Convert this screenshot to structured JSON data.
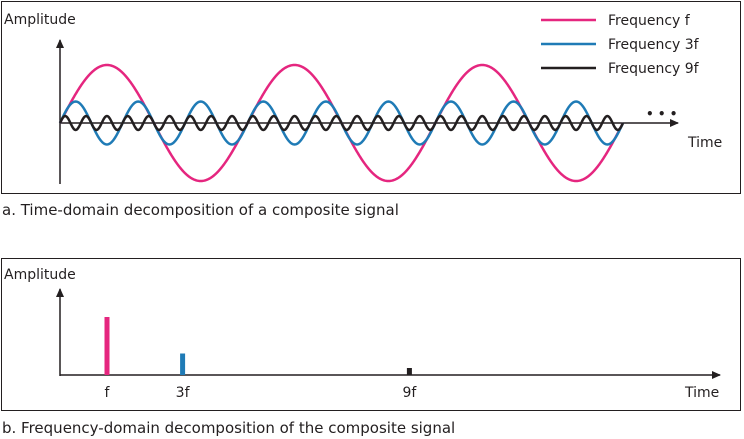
{
  "time_domain": {
    "y_label": "Amplitude",
    "x_label": "Time",
    "ellipsis": "• • •",
    "caption": "a. Time-domain decomposition of a composite signal",
    "legend": [
      {
        "label": "Frequency f",
        "color": "#e5267f"
      },
      {
        "label": "Frequency 3f",
        "color": "#1f7bb6"
      },
      {
        "label": "Frequency 9f",
        "color": "#231f20"
      }
    ],
    "waves": [
      {
        "name": "frequency-f",
        "color": "#e5267f",
        "cycles": 3,
        "amplitude": 1.0
      },
      {
        "name": "frequency-3f",
        "color": "#1f7bb6",
        "cycles": 9,
        "amplitude": 0.37
      },
      {
        "name": "frequency-9f",
        "color": "#231f20",
        "cycles": 27,
        "amplitude": 0.12
      }
    ]
  },
  "frequency_domain": {
    "y_label": "Amplitude",
    "x_label": "Time",
    "caption": "b. Frequency-domain decomposition of the composite signal",
    "bars": [
      {
        "label": "f",
        "harmonic": 1,
        "amplitude": 1.0,
        "color": "#e5267f"
      },
      {
        "label": "3f",
        "harmonic": 3,
        "amplitude": 0.37,
        "color": "#1f7bb6"
      },
      {
        "label": "9f",
        "harmonic": 9,
        "amplitude": 0.12,
        "color": "#231f20"
      }
    ]
  }
}
